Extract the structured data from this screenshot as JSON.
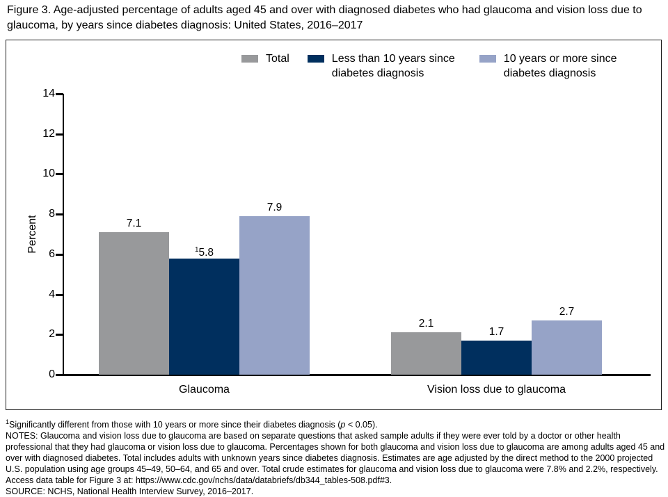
{
  "figure": {
    "title": "Figure 3. Age-adjusted percentage of adults aged 45 and over with diagnosed diabetes who had glaucoma and vision loss due to glaucoma, by years since diabetes diagnosis: United States, 2016–2017"
  },
  "chart_data": {
    "type": "bar",
    "title": "",
    "xlabel": "",
    "ylabel": "Percent",
    "ylim": [
      0,
      14
    ],
    "yticks": [
      0,
      2,
      4,
      6,
      8,
      10,
      12,
      14
    ],
    "grid": false,
    "legend_position": "top",
    "categories": [
      "Glaucoma",
      "Vision loss due to glaucoma"
    ],
    "series": [
      {
        "name": "Total",
        "color": "#98999b",
        "values": [
          7.1,
          2.1
        ],
        "value_labels": [
          "7.1",
          "2.1"
        ],
        "sig_markers": [
          "",
          ""
        ]
      },
      {
        "name": "Less than 10 years since diabetes diagnosis",
        "color": "#002f5e",
        "values": [
          5.8,
          1.7
        ],
        "value_labels": [
          "5.8",
          "1.7"
        ],
        "sig_markers": [
          "1",
          ""
        ]
      },
      {
        "name": "10 years or more since diabetes diagnosis",
        "color": "#96a3c7",
        "values": [
          7.9,
          2.7
        ],
        "value_labels": [
          "7.9",
          "2.7"
        ],
        "sig_markers": [
          "",
          ""
        ]
      }
    ]
  },
  "footnotes": {
    "sig_sup": "1",
    "sig_pre": "Significantly different from those with 10 years or more since their diabetes diagnosis (",
    "sig_p": "p",
    "sig_post": " < 0.05).",
    "notes": "NOTES: Glaucoma and vision loss due to glaucoma are based on separate questions that asked sample adults if they were ever told by a doctor or other health professional that they had glaucoma or vision loss due to glaucoma. Percentages shown for both glaucoma and vision loss due to glaucoma are among adults aged 45 and over with diagnosed diabetes. Total includes adults with unknown years since diabetes diagnosis. Estimates are age adjusted by the direct method to the 2000 projected U.S. population using age groups 45–49, 50–64, and 65 and over. Total crude estimates for glaucoma and vision loss due to glaucoma were 7.8% and 2.2%, respectively. Access data table for Figure 3 at: https://www.cdc.gov/nchs/data/databriefs/db344_tables-508.pdf#3.",
    "source": "SOURCE: NCHS, National Health Interview Survey, 2016–2017."
  }
}
